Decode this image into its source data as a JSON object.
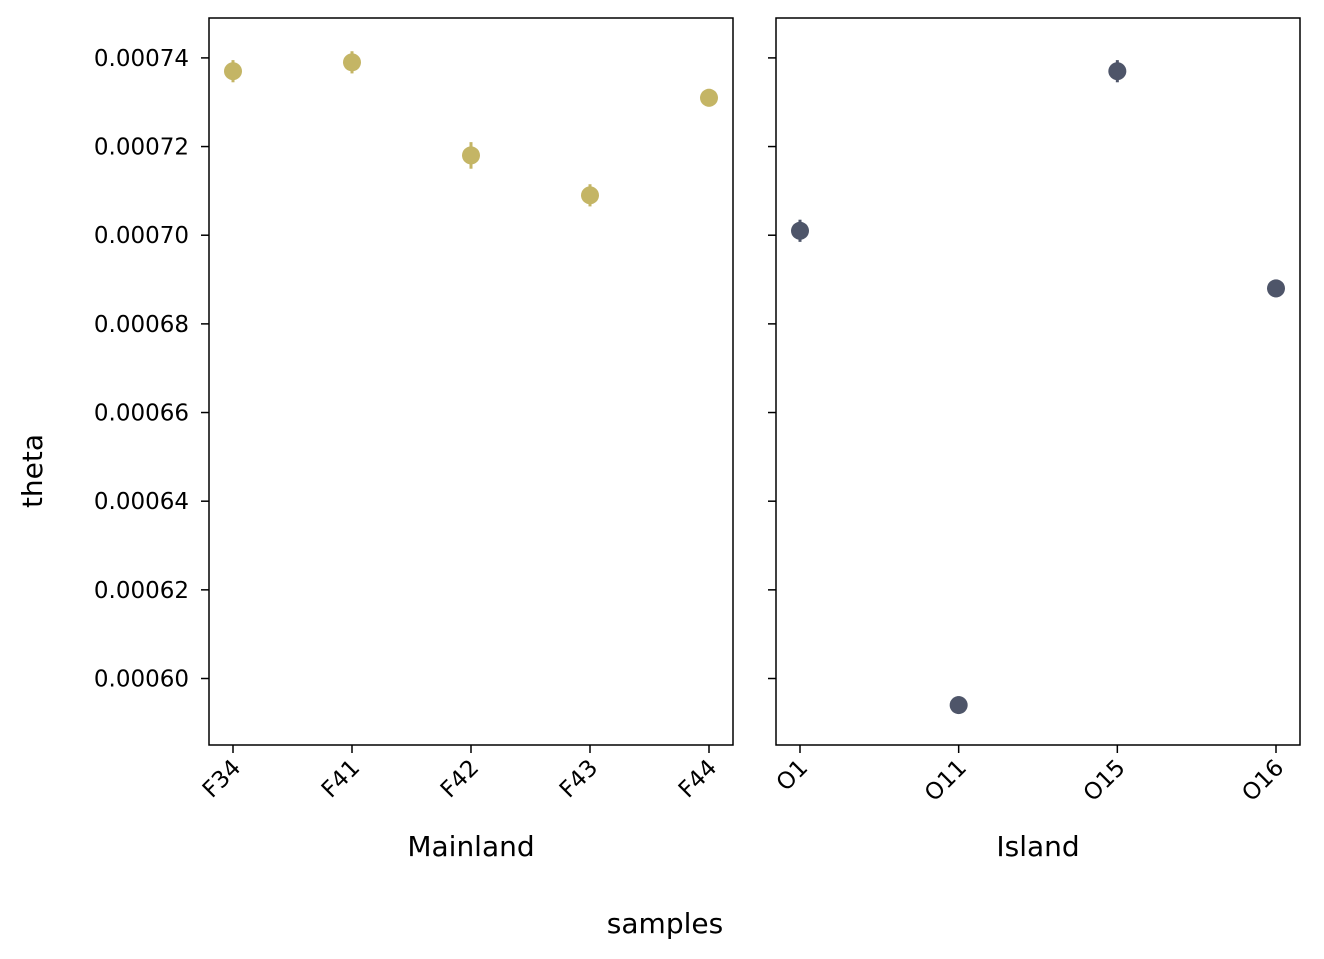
{
  "figure": {
    "ylabel": "theta",
    "supxlabel": "samples"
  },
  "chart_data": [
    {
      "type": "scatter",
      "xlabel": "Mainland",
      "ylabel": "theta",
      "categories": [
        "F34",
        "F41",
        "F42",
        "F43",
        "F44"
      ],
      "values": [
        0.000737,
        0.000739,
        0.000718,
        0.000709,
        0.000731
      ],
      "errors": [
        2.5e-06,
        2.5e-06,
        3e-06,
        2.5e-06,
        2e-06
      ],
      "color": "#c4b565",
      "ylim": [
        0.000585,
        0.000749
      ],
      "yticks": [
        "0.00060",
        "0.00062",
        "0.00064",
        "0.00066",
        "0.00068",
        "0.00070",
        "0.00072",
        "0.00074"
      ],
      "ytick_values": [
        0.0006,
        0.00062,
        0.00064,
        0.00066,
        0.00068,
        0.0007,
        0.00072,
        0.00074
      ],
      "grid": false
    },
    {
      "type": "scatter",
      "xlabel": "Island",
      "ylabel": "theta",
      "categories": [
        "O1",
        "O11",
        "O15",
        "O16"
      ],
      "values": [
        0.000701,
        0.000594,
        0.000737,
        0.000688
      ],
      "errors": [
        2.5e-06,
        2e-06,
        2.5e-06,
        2e-06
      ],
      "color": "#4e5569",
      "ylim": [
        0.000585,
        0.000749
      ],
      "sharey": true,
      "grid": false
    }
  ]
}
